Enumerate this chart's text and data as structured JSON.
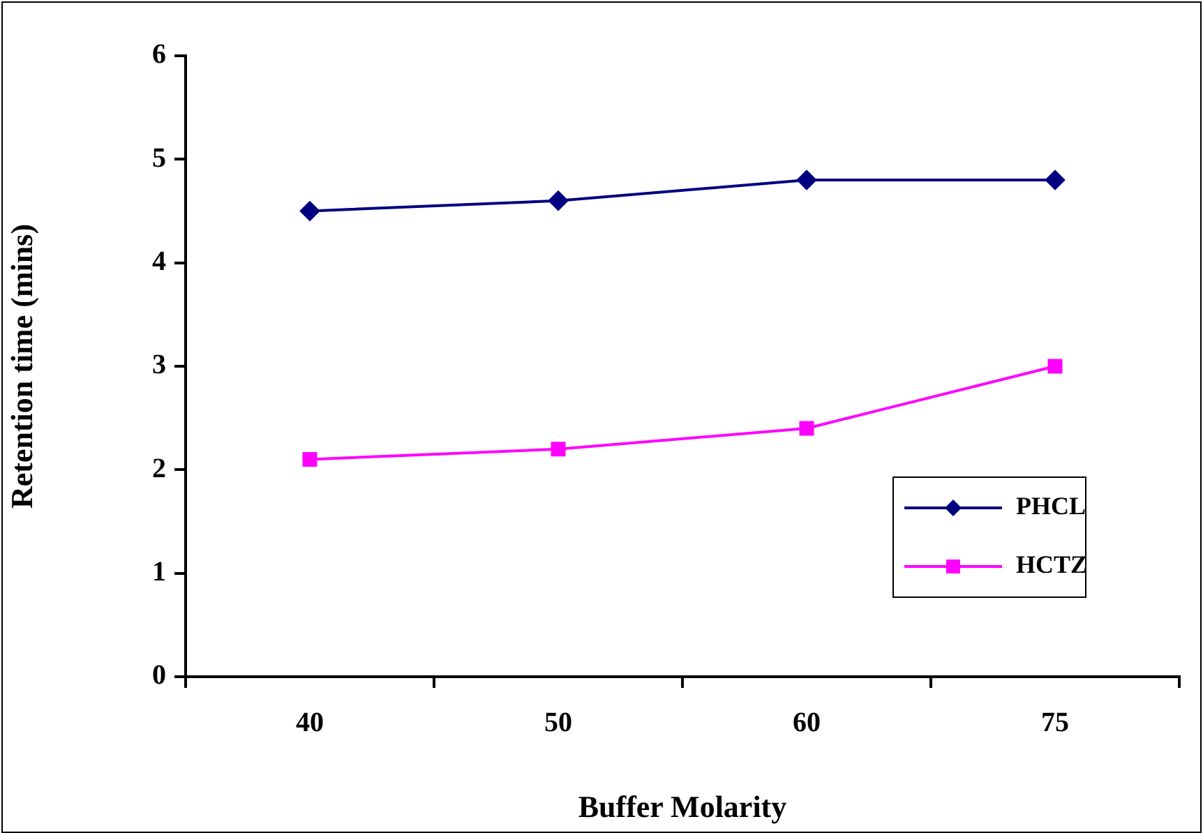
{
  "chart_data": {
    "type": "line",
    "xlabel": "Buffer Molarity",
    "ylabel": "Retention time (mins)",
    "categories": [
      "40",
      "50",
      "60",
      "75"
    ],
    "series": [
      {
        "name": "PHCL",
        "color": "#000080",
        "marker": "diamond",
        "values": [
          4.5,
          4.6,
          4.8,
          4.8
        ]
      },
      {
        "name": "HCTZ",
        "color": "#ff00ff",
        "marker": "square",
        "values": [
          2.1,
          2.2,
          2.4,
          3.0
        ]
      }
    ],
    "ylim": [
      0,
      6
    ],
    "yticks": [
      0,
      1,
      2,
      3,
      4,
      5,
      6
    ],
    "grid": false,
    "legend": "bottom right"
  }
}
